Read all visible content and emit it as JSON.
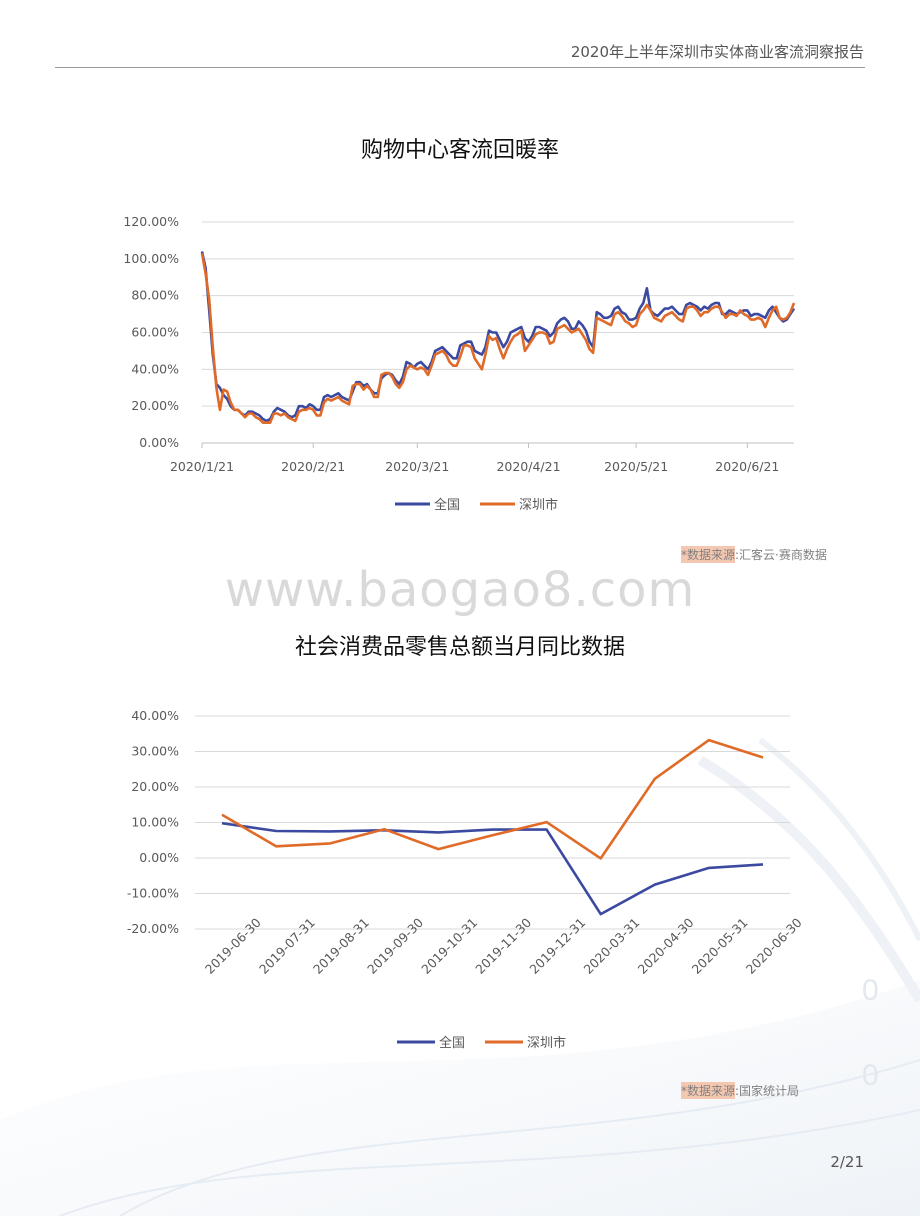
{
  "header": {
    "title": "2020年上半年深圳市实体商业客流洞察报告"
  },
  "watermark": "www.baogao8.com",
  "page_number": "2/21",
  "colors": {
    "national": "#3b4aa0",
    "shenzhen": "#e06a28",
    "grid": "#d9d9d9",
    "highlight": "#f4c8b0"
  },
  "chart1": {
    "title": "购物中心客流回暖率",
    "source_prefix": "*数据来源",
    "source_text": ":汇客云·赛商数据"
  },
  "chart2": {
    "title": "社会消费品零售总额当月同比数据",
    "source_prefix": "*数据来源",
    "source_text": ":国家统计局"
  },
  "chart_data": [
    {
      "type": "line",
      "title": "购物中心客流回暖率",
      "xlabel": "",
      "ylabel": "",
      "x_ticks": [
        "2020/1/21",
        "2020/2/21",
        "2020/3/21",
        "2020/4/21",
        "2020/5/21",
        "2020/6/21"
      ],
      "y_ticks": [
        "0.00%",
        "20.00%",
        "40.00%",
        "60.00%",
        "80.00%",
        "100.00%",
        "120.00%"
      ],
      "ylim": [
        0,
        120
      ],
      "x_start": "2020-01-21",
      "x_end": "2020-06-30",
      "grid": true,
      "legend": "bottom",
      "series": [
        {
          "name": "全国",
          "color": "#3b4aa0",
          "values": [
            104,
            95,
            72,
            48,
            32,
            30,
            26,
            24,
            20,
            18,
            18,
            16,
            15,
            17,
            17,
            16,
            15,
            13,
            12,
            13,
            17,
            19,
            18,
            17,
            15,
            14,
            15,
            20,
            20,
            19,
            21,
            20,
            18,
            18,
            25,
            26,
            25,
            26,
            27,
            25,
            24,
            23,
            28,
            33,
            33,
            31,
            32,
            29,
            27,
            27,
            35,
            37,
            38,
            37,
            34,
            32,
            36,
            44,
            43,
            41,
            43,
            44,
            42,
            40,
            44,
            50,
            51,
            52,
            50,
            48,
            46,
            46,
            53,
            54,
            55,
            55,
            50,
            49,
            48,
            52,
            61,
            60,
            60,
            56,
            52,
            55,
            60,
            61,
            62,
            63,
            57,
            55,
            58,
            63,
            63,
            62,
            61,
            58,
            60,
            65,
            67,
            68,
            66,
            62,
            62,
            66,
            64,
            61,
            55,
            52,
            71,
            70,
            68,
            68,
            69,
            73,
            74,
            71,
            70,
            67,
            67,
            68,
            73,
            76,
            84,
            72,
            70,
            69,
            71,
            73,
            73,
            74,
            72,
            70,
            70,
            75,
            76,
            75,
            74,
            72,
            74,
            73,
            75,
            76,
            76,
            70,
            70,
            72,
            71,
            70,
            71,
            72,
            72,
            69,
            70,
            70,
            69,
            68,
            72,
            74,
            71,
            68,
            66,
            67,
            70,
            73
          ]
        },
        {
          "name": "深圳市",
          "color": "#e06a28",
          "values": [
            103,
            92,
            78,
            52,
            30,
            18,
            29,
            28,
            22,
            18,
            18,
            16,
            14,
            16,
            16,
            14,
            13,
            11,
            11,
            11,
            16,
            16,
            15,
            16,
            14,
            13,
            12,
            17,
            18,
            18,
            19,
            18,
            15,
            15,
            22,
            24,
            23,
            24,
            25,
            23,
            22,
            21,
            31,
            32,
            32,
            29,
            31,
            29,
            25,
            25,
            37,
            38,
            38,
            36,
            32,
            30,
            33,
            40,
            42,
            41,
            40,
            41,
            40,
            37,
            42,
            48,
            49,
            50,
            48,
            44,
            42,
            42,
            47,
            53,
            53,
            52,
            46,
            43,
            40,
            48,
            58,
            56,
            57,
            51,
            46,
            51,
            55,
            58,
            59,
            61,
            50,
            53,
            56,
            59,
            60,
            60,
            59,
            54,
            55,
            62,
            63,
            64,
            62,
            60,
            61,
            62,
            59,
            56,
            51,
            49,
            68,
            67,
            66,
            65,
            64,
            70,
            71,
            69,
            66,
            65,
            63,
            64,
            70,
            72,
            75,
            72,
            68,
            67,
            66,
            69,
            70,
            71,
            69,
            67,
            66,
            73,
            74,
            74,
            72,
            69,
            71,
            71,
            73,
            74,
            74,
            71,
            68,
            70,
            70,
            69,
            72,
            70,
            69,
            67,
            67,
            68,
            67,
            63,
            68,
            72,
            74,
            68,
            67,
            68,
            71,
            76
          ]
        }
      ]
    },
    {
      "type": "line",
      "title": "社会消费品零售总额当月同比数据",
      "xlabel": "",
      "ylabel": "",
      "categories": [
        "2019-06-30",
        "2019-07-31",
        "2019-08-31",
        "2019-09-30",
        "2019-10-31",
        "2019-11-30",
        "2019-12-31",
        "2020-03-31",
        "2020-04-30",
        "2020-05-31",
        "2020-06-30"
      ],
      "y_ticks": [
        "-20.00%",
        "-10.00%",
        "0.00%",
        "10.00%",
        "20.00%",
        "30.00%",
        "40.00%"
      ],
      "ylim": [
        -20,
        40
      ],
      "grid": true,
      "legend": "bottom",
      "series": [
        {
          "name": "全国",
          "color": "#3b4aa0",
          "values": [
            9.8,
            7.6,
            7.5,
            7.8,
            7.2,
            8.0,
            8.0,
            -15.8,
            -7.5,
            -2.8,
            -1.8
          ]
        },
        {
          "name": "深圳市",
          "color": "#e06a28",
          "values": [
            12.2,
            3.3,
            4.1,
            8.1,
            2.5,
            6.4,
            10.1,
            -0.1,
            22.3,
            33.2,
            28.3
          ]
        }
      ]
    }
  ]
}
